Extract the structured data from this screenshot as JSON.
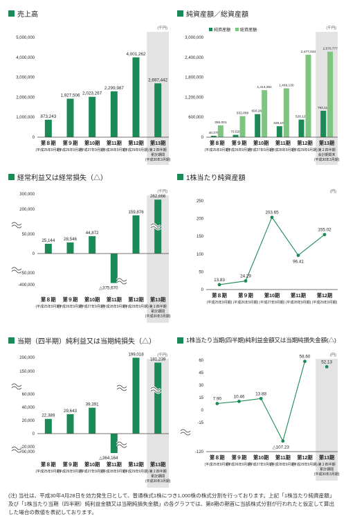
{
  "colors": {
    "green": "#1c8a56",
    "light_green": "#7ec57f",
    "shade": "#e3e3e3"
  },
  "footnote": "(注) 当社は、平成30年4月28日を効力発生日として、普通株式1株につき1,000株の株式分割を行っております。上記「1株当たり純資産額」及び「1株当たり当期（四半期）純利益金額又は当期純損失金額」の各グラフでは、第8期の期首に当該株式分割が行われたと仮定して算出した場合の数値を表記しております。",
  "chart_data": [
    {
      "type": "bar",
      "title": "売上高",
      "unit": "(千円)",
      "categories": [
        "第８期",
        "第９期",
        "第10期",
        "第11期",
        "第12期",
        "第13期"
      ],
      "subs": [
        [
          "(平成25年9月期)"
        ],
        [
          "(平成26年9月期)"
        ],
        [
          "(平成27年9月期)"
        ],
        [
          "(平成28年9月期)"
        ],
        [
          "(平成29年9月期)"
        ],
        [
          "第２四半期",
          "累計期間",
          "(平成30年3月期)"
        ]
      ],
      "series": [
        {
          "values": [
            873243,
            1927506,
            2023267,
            2299987,
            4001262,
            2697442
          ]
        }
      ],
      "value_labels": [
        [
          "873,243",
          "1,927,506",
          "2,023,267",
          "2,299,987",
          "4,001,262",
          "2,697,442"
        ]
      ],
      "yticks": [
        {
          "v": 0,
          "t": "0"
        },
        {
          "v": 1000000,
          "t": "1,000,000"
        },
        {
          "v": 2000000,
          "t": "2,000,000"
        },
        {
          "v": 3000000,
          "t": "3,000,000"
        },
        {
          "v": 4000000,
          "t": "4,000,000"
        },
        {
          "v": 5000000,
          "t": "5,000,000"
        }
      ],
      "ylim": [
        0,
        5000000
      ],
      "grid": false,
      "shaded_last": true
    },
    {
      "type": "bar",
      "title": "純資産額／総資産額",
      "unit": "(千円)",
      "categories": [
        "第８期",
        "第９期",
        "第10期",
        "第11期",
        "第12期",
        "第13期"
      ],
      "subs": [
        [
          "(平成25年9月期)"
        ],
        [
          "(平成26年9月期)"
        ],
        [
          "(平成27年9月期)"
        ],
        [
          "(平成28年9月期)"
        ],
        [
          "(平成29年9月期)"
        ],
        [
          "第２四半期",
          "会計期間末",
          "(平成30年3月期)"
        ]
      ],
      "series": [
        {
          "name": "純資産額",
          "values": [
            40375,
            70520,
            693268,
            329103,
            528121,
            793111
          ]
        },
        {
          "name": "総資産額",
          "values": [
            355001,
            632889,
            1414351,
            1469130,
            2477043,
            2570777
          ]
        }
      ],
      "value_labels": [
        [
          "40,375",
          "70,520",
          "693,268",
          "329,103",
          "528,121",
          "793,111"
        ],
        [
          "355,001",
          "632,889",
          "1,414,351",
          "1,469,130",
          "2,477,043",
          "2,570,777"
        ]
      ],
      "yticks": [
        {
          "v": 0,
          "t": "0"
        },
        {
          "v": 600000,
          "t": "600,000"
        },
        {
          "v": 1200000,
          "t": "1,200,000"
        },
        {
          "v": 1800000,
          "t": "1,800,000"
        },
        {
          "v": 2400000,
          "t": "2,400,000"
        },
        {
          "v": 3000000,
          "t": "3,000,000"
        }
      ],
      "ylim": [
        0,
        3000000
      ],
      "grid": false,
      "legend": "top-left",
      "shaded_last": true
    },
    {
      "type": "bar",
      "title": "経常利益又は経常損失（△）",
      "unit": "(千円)",
      "categories": [
        "第８期",
        "第９期",
        "第10期",
        "第11期",
        "第12期",
        "第13期"
      ],
      "subs": [
        [
          "(平成25年9月期)"
        ],
        [
          "(平成26年9月期)"
        ],
        [
          "(平成27年9月期)"
        ],
        [
          "(平成28年9月期)"
        ],
        [
          "(平成29年9月期)"
        ],
        [
          "第２四半期",
          "累計期間",
          "(平成30年3月期)"
        ]
      ],
      "series": [
        {
          "values": [
            25144,
            28546,
            44872,
            -375670,
            159876,
            262666
          ]
        }
      ],
      "value_labels": [
        [
          "25,144",
          "28,546",
          "44,872",
          "△375,670",
          "159,876",
          "262,666"
        ]
      ],
      "yticks": [
        {
          "t": "300,000"
        },
        {
          "t": "200,000"
        },
        {
          "t": "50,000"
        },
        {
          "t": "0"
        },
        {
          "t": "-50,000"
        },
        {
          "t": "-400,000"
        }
      ],
      "scale": "broken",
      "grid": false,
      "shaded_last": true
    },
    {
      "type": "line",
      "title": "1株当たり純資産額",
      "unit": "(円)",
      "categories": [
        "第８期",
        "第９期",
        "第10期",
        "第11期",
        "第12期"
      ],
      "subs": [
        [
          "(平成25年9月期)"
        ],
        [
          "(平成26年9月期)"
        ],
        [
          "(平成27年9月期)"
        ],
        [
          "(平成28年9月期)"
        ],
        [
          "(平成29年9月期)"
        ]
      ],
      "series": [
        {
          "values": [
            13.83,
            24.29,
            203.65,
            96.41,
            155.02
          ]
        }
      ],
      "value_labels": [
        [
          "13.83",
          "24.29",
          "203.65",
          "96.41",
          "155.02"
        ]
      ],
      "yticks": [
        {
          "v": 0,
          "t": "0"
        },
        {
          "v": 50,
          "t": "50"
        },
        {
          "v": 100,
          "t": "100"
        },
        {
          "v": 150,
          "t": "150"
        },
        {
          "v": 200,
          "t": "200"
        },
        {
          "v": 250,
          "t": "250"
        }
      ],
      "ylim": [
        0,
        250
      ],
      "grid": false
    },
    {
      "type": "bar",
      "title": "当期（四半期）純利益又は当期純損失（△）",
      "unit": "(千円)",
      "categories": [
        "第８期",
        "第９期",
        "第10期",
        "第11期",
        "第12期",
        "第13期"
      ],
      "subs": [
        [
          "(平成25年9月期)"
        ],
        [
          "(平成26年9月期)"
        ],
        [
          "(平成27年9月期)"
        ],
        [
          "(平成28年9月期)"
        ],
        [
          "(平成29年9月期)"
        ],
        [
          "第２四半期",
          "累計期間",
          "(平成30年3月期)"
        ]
      ],
      "series": [
        {
          "values": [
            22389,
            29643,
            39391,
            -364164,
            199018,
            181239
          ]
        }
      ],
      "value_labels": [
        [
          "22,389",
          "29,643",
          "39,391",
          "△364,164",
          "199,018",
          "181,239"
        ]
      ],
      "yticks": [
        {
          "t": "200,000"
        },
        {
          "t": "150,000"
        },
        {
          "t": "60,000"
        },
        {
          "t": "40,000"
        },
        {
          "t": "20,000"
        },
        {
          "t": "0"
        },
        {
          "t": "-20,000"
        },
        {
          "t": "-400,000"
        }
      ],
      "scale": "broken",
      "grid": false,
      "shaded_last": true
    },
    {
      "type": "line",
      "title": "1株当たり当期(四半期)純利益金額又は当期純損失金額(△)",
      "unit": "(円)",
      "categories": [
        "第８期",
        "第９期",
        "第10期",
        "第11期",
        "第12期",
        "第13期"
      ],
      "subs": [
        [
          "(平成25年9月期)"
        ],
        [
          "(平成26年9月期)"
        ],
        [
          "(平成27年9月期)"
        ],
        [
          "(平成28年9月期)"
        ],
        [
          "(平成29年9月期)"
        ],
        [
          "第２四半期",
          "累計期間",
          "(平成30年3月期)"
        ]
      ],
      "series": [
        {
          "values": [
            7.9,
            10.46,
            13.88,
            -107.23,
            58.6,
            52.13
          ]
        }
      ],
      "value_labels": [
        [
          "7.90",
          "10.46",
          "13.88",
          "△107.23",
          "58.60",
          "52.13"
        ]
      ],
      "yticks": [
        {
          "t": "60"
        },
        {
          "t": "45"
        },
        {
          "t": "30"
        },
        {
          "t": "15"
        },
        {
          "t": "0"
        },
        {
          "t": "-15"
        },
        {
          "t": "-120"
        }
      ],
      "scale": "broken",
      "grid": false,
      "shaded_last": true
    }
  ]
}
